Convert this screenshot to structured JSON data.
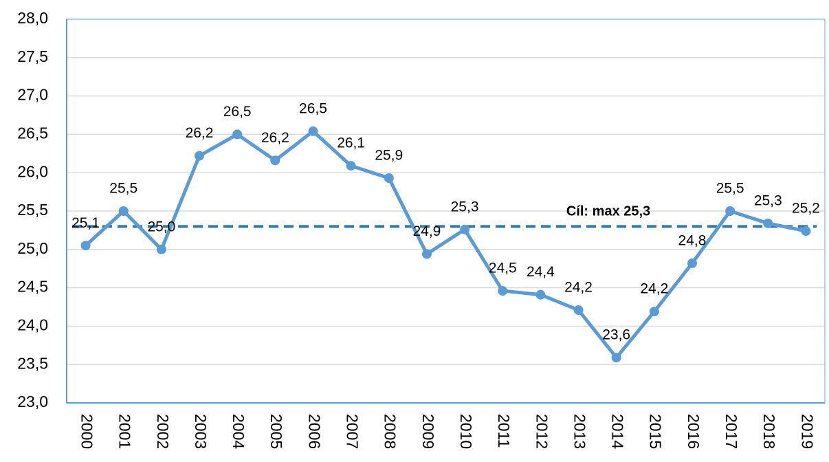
{
  "chart_data": {
    "type": "line",
    "categories": [
      "2000",
      "2001",
      "2002",
      "2003",
      "2004",
      "2005",
      "2006",
      "2007",
      "2008",
      "2009",
      "2010",
      "2011",
      "2012",
      "2013",
      "2014",
      "2015",
      "2016",
      "2017",
      "2018",
      "2019"
    ],
    "values": [
      25.05,
      25.5,
      25.0,
      26.22,
      26.5,
      26.16,
      26.54,
      26.09,
      25.93,
      24.94,
      25.26,
      24.46,
      24.41,
      24.21,
      23.59,
      24.19,
      24.82,
      25.5,
      25.34,
      25.24
    ],
    "value_labels": [
      "25,1",
      "25,5",
      "25,0",
      "26,2",
      "26,5",
      "26,2",
      "26,5",
      "26,1",
      "25,9",
      "24,9",
      "25,3",
      "24,5",
      "24,4",
      "24,2",
      "23,6",
      "24,2",
      "24,8",
      "25,5",
      "25,3",
      "25,2"
    ],
    "color": "#5b9bd5",
    "ylim": [
      23,
      28
    ],
    "yticks": [
      {
        "value": 23,
        "label": "23,0"
      },
      {
        "value": 23.5,
        "label": "23,5"
      },
      {
        "value": 24,
        "label": "24,0"
      },
      {
        "value": 24.5,
        "label": "24,5"
      },
      {
        "value": 25,
        "label": "25,0"
      },
      {
        "value": 25.5,
        "label": "25,5"
      },
      {
        "value": 26,
        "label": "26,0"
      },
      {
        "value": 26.5,
        "label": "26,5"
      },
      {
        "value": 27,
        "label": "27,0"
      },
      {
        "value": 27.5,
        "label": "27,5"
      },
      {
        "value": 28,
        "label": "28,0"
      }
    ],
    "grid": true,
    "target": {
      "value": 25.3,
      "label": "Cíl: max 25,3",
      "color": "#2e75b6"
    }
  }
}
